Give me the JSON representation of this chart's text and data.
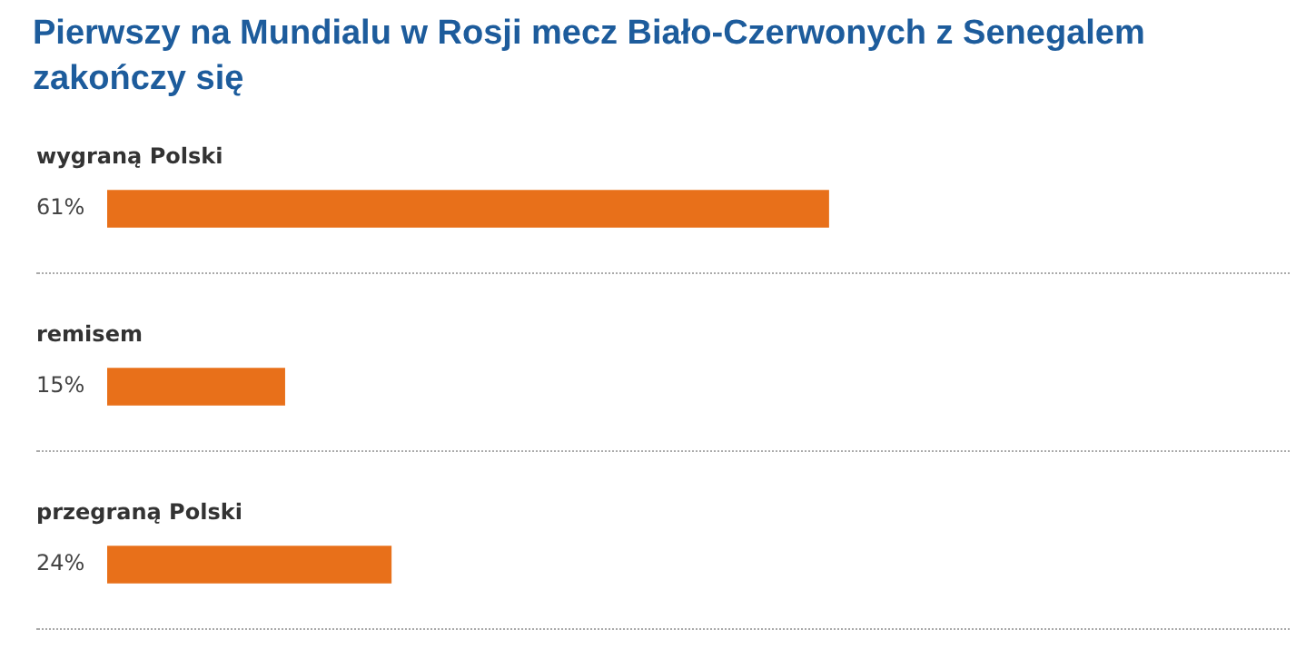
{
  "chart_data": {
    "type": "bar",
    "orientation": "horizontal",
    "title": "Pierwszy na Mundialu w Rosji mecz Biało-Czerwonych z Senegalem zakończy się",
    "categories": [
      "wygraną Polski",
      "remisem",
      "przegraną Polski"
    ],
    "values": [
      61,
      15,
      24
    ],
    "value_labels": [
      "61%",
      "15%",
      "24%"
    ],
    "color": "#e8701a"
  }
}
